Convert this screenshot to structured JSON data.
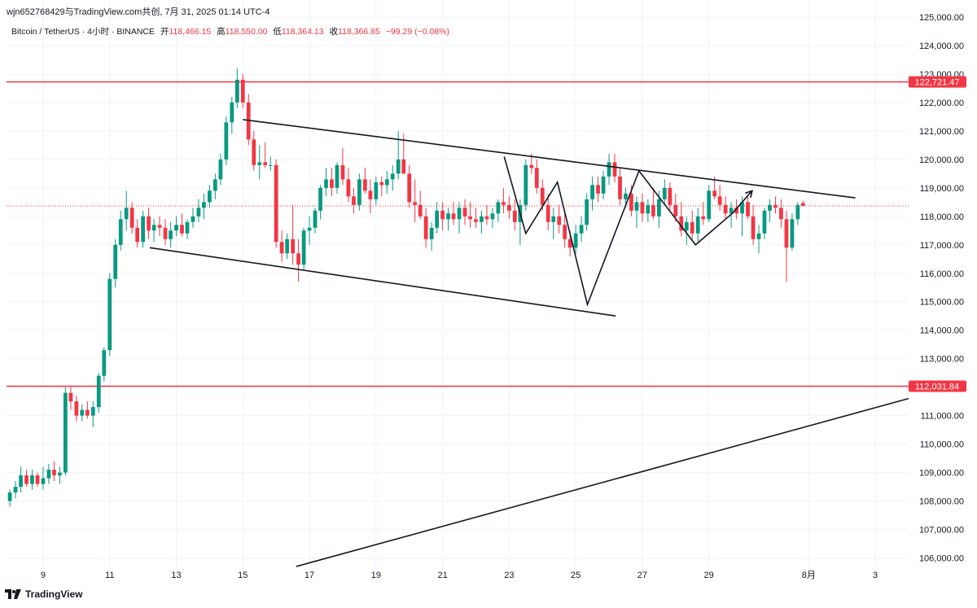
{
  "header": {
    "attribution": "wjn652768429与TradingView.com共创, 7月 31, 2025 01:14 UTC-4",
    "symbol": "Bitcoin / TetherUS · 4小时 · BINANCE",
    "open_label": "开",
    "open_value": "118,466.15",
    "high_label": "高",
    "high_value": "118,550.00",
    "low_label": "低",
    "low_value": "118,364.13",
    "close_label": "收",
    "close_value": "118,366.85",
    "change": "−99.29 (−0.08%)"
  },
  "footer": {
    "brand": "TradingView"
  },
  "colors": {
    "up": "#089981",
    "down": "#f23645",
    "level": "#f23645",
    "trend": "#131722",
    "grid": "#f0f3fa"
  },
  "chart_data": {
    "type": "candlestick",
    "y_tick_labels": [
      "125,000.00",
      "124,000.00",
      "123,000.00",
      "122,000.00",
      "121,000.00",
      "120,000.00",
      "119,000.00",
      "118,000.00",
      "117,000.00",
      "116,000.00",
      "115,000.00",
      "114,000.00",
      "113,000.00",
      "112,000.00",
      "111,000.00",
      "110,000.00",
      "109,000.00",
      "108,000.00",
      "107,000.00",
      "106,000.00"
    ],
    "y_ticks": [
      125000,
      124000,
      123000,
      122000,
      121000,
      120000,
      119000,
      118000,
      117000,
      116000,
      115000,
      114000,
      113000,
      112000,
      111000,
      110000,
      109000,
      108000,
      107000,
      106000
    ],
    "ylim": [
      105500,
      125600
    ],
    "x_tick_labels": [
      "9",
      "11",
      "13",
      "15",
      "17",
      "19",
      "21",
      "23",
      "25",
      "27",
      "29",
      "8月",
      "3"
    ],
    "x_ticks_day": [
      9,
      11,
      13,
      15,
      17,
      19,
      21,
      23,
      25,
      27,
      29,
      32,
      34
    ],
    "xlim_day": [
      7.9,
      35.0
    ],
    "levels": [
      {
        "value": 122721.47,
        "label": "122,721.47"
      },
      {
        "value": 112031.84,
        "label": "112,031.84"
      }
    ],
    "current_price": 118366.85,
    "trendlines": [
      {
        "x1": 15.0,
        "y1": 121400,
        "x2": 33.4,
        "y2": 118650
      },
      {
        "x1": 12.2,
        "y1": 116900,
        "x2": 26.2,
        "y2": 114500
      },
      {
        "x1": 16.6,
        "y1": 105700,
        "x2": 35.0,
        "y2": 111600
      }
    ],
    "path_arrow": {
      "points": [
        [
          22.85,
          120100
        ],
        [
          23.5,
          117400
        ],
        [
          24.45,
          119200
        ],
        [
          25.35,
          114900
        ],
        [
          26.9,
          119600
        ],
        [
          28.6,
          117000
        ],
        [
          29.7,
          118100
        ]
      ],
      "arrow_to": [
        30.3,
        118900
      ]
    },
    "candles": [
      [
        8.0,
        108000,
        108400,
        107800,
        108300
      ],
      [
        8.17,
        108300,
        108700,
        108100,
        108500
      ],
      [
        8.33,
        108500,
        109200,
        108300,
        108900
      ],
      [
        8.5,
        108900,
        109100,
        108500,
        108600
      ],
      [
        8.67,
        108600,
        109100,
        108400,
        108900
      ],
      [
        8.83,
        108900,
        109000,
        108500,
        108600
      ],
      [
        9.0,
        108600,
        109200,
        108400,
        108800
      ],
      [
        9.17,
        108800,
        109300,
        108600,
        109100
      ],
      [
        9.33,
        109100,
        109400,
        108700,
        108900
      ],
      [
        9.5,
        108900,
        109200,
        108600,
        109000
      ],
      [
        9.67,
        109000,
        112000,
        108900,
        111800
      ],
      [
        9.83,
        111800,
        112000,
        111200,
        111500
      ],
      [
        10.0,
        111500,
        111700,
        110800,
        111000
      ],
      [
        10.17,
        111000,
        111400,
        110800,
        111200
      ],
      [
        10.33,
        111200,
        111500,
        110900,
        111000
      ],
      [
        10.5,
        111000,
        111500,
        110600,
        111300
      ],
      [
        10.67,
        111300,
        112500,
        111100,
        112400
      ],
      [
        10.83,
        112400,
        113400,
        112200,
        113300
      ],
      [
        11.0,
        113300,
        116000,
        113100,
        115800
      ],
      [
        11.17,
        115800,
        117200,
        115500,
        117000
      ],
      [
        11.33,
        117000,
        118200,
        116800,
        117900
      ],
      [
        11.5,
        117900,
        118900,
        117500,
        118300
      ],
      [
        11.67,
        118300,
        118500,
        117400,
        117600
      ],
      [
        11.83,
        117600,
        117900,
        116900,
        117100
      ],
      [
        12.0,
        117100,
        118200,
        116900,
        118000
      ],
      [
        12.17,
        118000,
        118300,
        117200,
        117500
      ],
      [
        12.33,
        117500,
        117900,
        117100,
        117700
      ],
      [
        12.5,
        117700,
        118000,
        117300,
        117600
      ],
      [
        12.67,
        117600,
        117900,
        117000,
        117200
      ],
      [
        12.83,
        117200,
        117800,
        116900,
        117500
      ],
      [
        13.0,
        117500,
        118000,
        117300,
        117700
      ],
      [
        13.17,
        117700,
        118100,
        117300,
        117400
      ],
      [
        13.33,
        117400,
        117900,
        117200,
        117800
      ],
      [
        13.5,
        117800,
        118300,
        117600,
        118000
      ],
      [
        13.67,
        118000,
        118600,
        117800,
        118300
      ],
      [
        13.83,
        118300,
        118800,
        117900,
        118500
      ],
      [
        14.0,
        118500,
        119100,
        118300,
        118900
      ],
      [
        14.17,
        118900,
        119500,
        118600,
        119300
      ],
      [
        14.33,
        119300,
        120200,
        119100,
        120000
      ],
      [
        14.5,
        120000,
        121500,
        119800,
        121300
      ],
      [
        14.67,
        121300,
        122200,
        120900,
        122000
      ],
      [
        14.83,
        122000,
        123200,
        121800,
        122800
      ],
      [
        15.0,
        122800,
        123000,
        121800,
        122000
      ],
      [
        15.17,
        122000,
        122300,
        120500,
        120700
      ],
      [
        15.33,
        120700,
        121000,
        119600,
        119800
      ],
      [
        15.5,
        119800,
        120500,
        119300,
        119900
      ],
      [
        15.67,
        119900,
        120600,
        119700,
        119800
      ],
      [
        15.83,
        119800,
        120100,
        119600,
        119800
      ],
      [
        16.0,
        119800,
        120000,
        116900,
        117100
      ],
      [
        16.17,
        117100,
        117500,
        116400,
        116700
      ],
      [
        16.33,
        116700,
        117400,
        116500,
        117200
      ],
      [
        16.5,
        117200,
        118400,
        116300,
        116700
      ],
      [
        16.67,
        116700,
        117200,
        115700,
        116300
      ],
      [
        16.83,
        116300,
        117600,
        116100,
        117500
      ],
      [
        17.0,
        117500,
        118000,
        117000,
        117600
      ],
      [
        17.17,
        117600,
        118300,
        117400,
        118200
      ],
      [
        17.33,
        118200,
        119100,
        117900,
        119000
      ],
      [
        17.5,
        119000,
        119700,
        118700,
        119300
      ],
      [
        17.67,
        119300,
        119700,
        118700,
        119000
      ],
      [
        17.83,
        119000,
        119900,
        118800,
        119800
      ],
      [
        18.0,
        119800,
        120400,
        119100,
        119300
      ],
      [
        18.17,
        119300,
        119700,
        118500,
        118700
      ],
      [
        18.33,
        118700,
        119000,
        118100,
        118400
      ],
      [
        18.5,
        118400,
        119500,
        118200,
        119300
      ],
      [
        18.67,
        119300,
        119700,
        118800,
        118900
      ],
      [
        18.83,
        118900,
        119300,
        118100,
        118600
      ],
      [
        19.0,
        118600,
        119400,
        118400,
        119200
      ],
      [
        19.17,
        119200,
        119400,
        118700,
        119100
      ],
      [
        19.33,
        119100,
        119600,
        118800,
        119300
      ],
      [
        19.5,
        119300,
        119800,
        118900,
        119500
      ],
      [
        19.67,
        119500,
        121000,
        119300,
        120000
      ],
      [
        19.83,
        120000,
        120900,
        119600,
        119500
      ],
      [
        20.0,
        119500,
        119800,
        118300,
        118500
      ],
      [
        20.17,
        118500,
        119300,
        117800,
        118400
      ],
      [
        20.33,
        118400,
        118900,
        117900,
        118000
      ],
      [
        20.5,
        118000,
        118300,
        116900,
        117200
      ],
      [
        20.67,
        117200,
        117800,
        116800,
        117600
      ],
      [
        20.83,
        117600,
        118500,
        117400,
        118200
      ],
      [
        21.0,
        118200,
        118500,
        117500,
        117900
      ],
      [
        21.17,
        117900,
        118300,
        117500,
        118100
      ],
      [
        21.33,
        118100,
        118500,
        117700,
        117900
      ],
      [
        21.5,
        117900,
        118500,
        117400,
        118300
      ],
      [
        21.67,
        118300,
        118600,
        117700,
        118000
      ],
      [
        21.83,
        118000,
        118500,
        117600,
        117900
      ],
      [
        22.0,
        117900,
        118300,
        117600,
        117800
      ],
      [
        22.17,
        117800,
        118200,
        117400,
        118000
      ],
      [
        22.33,
        118000,
        118400,
        117700,
        117900
      ],
      [
        22.5,
        117900,
        118300,
        117600,
        118100
      ],
      [
        22.67,
        118100,
        118600,
        117800,
        118500
      ],
      [
        22.83,
        118500,
        119000,
        118100,
        118400
      ],
      [
        23.0,
        118400,
        118700,
        117900,
        118200
      ],
      [
        23.17,
        118200,
        118600,
        117500,
        117800
      ],
      [
        23.33,
        117800,
        118600,
        117000,
        118400
      ],
      [
        23.5,
        118400,
        120000,
        118200,
        119800
      ],
      [
        23.67,
        119800,
        120200,
        119500,
        119700
      ],
      [
        23.83,
        119700,
        120000,
        118800,
        119000
      ],
      [
        24.0,
        119000,
        119300,
        118200,
        118400
      ],
      [
        24.17,
        118400,
        118800,
        117500,
        117800
      ],
      [
        24.33,
        117800,
        118300,
        117200,
        118000
      ],
      [
        24.5,
        118000,
        118400,
        117400,
        117700
      ],
      [
        24.67,
        117700,
        118100,
        116900,
        117200
      ],
      [
        24.83,
        117200,
        117500,
        116600,
        116900
      ],
      [
        25.0,
        116900,
        117700,
        116700,
        117400
      ],
      [
        25.17,
        117400,
        118000,
        117100,
        117700
      ],
      [
        25.33,
        117700,
        118800,
        117500,
        118600
      ],
      [
        25.5,
        118600,
        119400,
        118200,
        119100
      ],
      [
        25.67,
        119100,
        119400,
        118500,
        118800
      ],
      [
        25.83,
        118800,
        119600,
        118600,
        119400
      ],
      [
        26.0,
        119400,
        120200,
        119100,
        119900
      ],
      [
        26.17,
        119900,
        120200,
        119200,
        119400
      ],
      [
        26.33,
        119400,
        119700,
        118400,
        118600
      ],
      [
        26.5,
        118600,
        119000,
        118300,
        118800
      ],
      [
        26.67,
        118800,
        119100,
        118000,
        118200
      ],
      [
        26.83,
        118200,
        118700,
        117600,
        118500
      ],
      [
        27.0,
        118500,
        118800,
        117800,
        118100
      ],
      [
        27.17,
        118100,
        118600,
        117800,
        118400
      ],
      [
        27.33,
        118400,
        119000,
        117900,
        118000
      ],
      [
        27.5,
        118000,
        118900,
        117600,
        118600
      ],
      [
        27.67,
        118600,
        119300,
        118400,
        119000
      ],
      [
        27.83,
        119000,
        119200,
        118200,
        118400
      ],
      [
        28.0,
        118400,
        118800,
        117800,
        118000
      ],
      [
        28.17,
        118000,
        118500,
        117300,
        117500
      ],
      [
        28.33,
        117500,
        118000,
        117000,
        117800
      ],
      [
        28.5,
        117800,
        118200,
        117200,
        117400
      ],
      [
        28.67,
        117400,
        118300,
        117100,
        118000
      ],
      [
        28.83,
        118000,
        118500,
        117700,
        117900
      ],
      [
        29.0,
        117900,
        119100,
        117800,
        118900
      ],
      [
        29.17,
        118900,
        119400,
        118600,
        118700
      ],
      [
        29.33,
        118700,
        119100,
        118200,
        118400
      ],
      [
        29.5,
        118400,
        118700,
        117900,
        118100
      ],
      [
        29.67,
        118100,
        118500,
        117600,
        118300
      ],
      [
        29.83,
        118300,
        118600,
        117900,
        118100
      ],
      [
        30.0,
        118100,
        118700,
        117300,
        118500
      ],
      [
        30.17,
        118500,
        118700,
        117900,
        118000
      ],
      [
        30.33,
        118000,
        118400,
        117000,
        117200
      ],
      [
        30.5,
        117200,
        117700,
        116700,
        117400
      ],
      [
        30.67,
        117400,
        118300,
        117200,
        118200
      ],
      [
        30.83,
        118200,
        118600,
        117800,
        118400
      ],
      [
        31.0,
        118400,
        118700,
        118100,
        118300
      ],
      [
        31.17,
        118300,
        118600,
        117600,
        117900
      ],
      [
        31.33,
        117900,
        118200,
        115700,
        116900
      ],
      [
        31.5,
        116900,
        118100,
        116800,
        117900
      ],
      [
        31.67,
        117900,
        118500,
        117700,
        118400
      ],
      [
        31.83,
        118466,
        118550,
        118364,
        118367
      ]
    ]
  }
}
